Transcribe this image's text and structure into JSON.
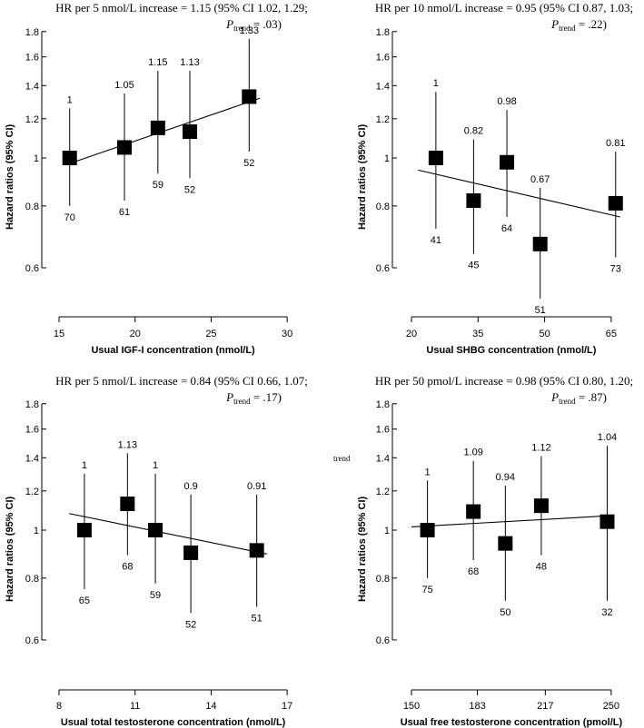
{
  "chart_data": [
    {
      "type": "scatter",
      "title": "HR per 5 nmol/L increase = 1.15 (95% CI 1.02, 1.29;",
      "p_trend": {
        "prefix": "P",
        "subscript": "trend",
        "value": " = .03)"
      },
      "xlabel": "Usual IGF-I concentration (nmol/L)",
      "ylabel": "Hazard ratios (95% CI)",
      "xlim": [
        15,
        30
      ],
      "x_ticks": [
        15,
        20,
        25,
        30
      ],
      "ylim": [
        0.5,
        1.8
      ],
      "y_ticks": [
        0.6,
        0.8,
        1,
        1.2,
        1.4,
        1.6,
        1.8
      ],
      "stray_label": "",
      "points": [
        {
          "x": 15.7,
          "hr": 1.0,
          "hr_label": "1",
          "lower": 0.8,
          "upper": 1.26,
          "n": "70"
        },
        {
          "x": 19.3,
          "hr": 1.05,
          "hr_label": "1.05",
          "lower": 0.82,
          "upper": 1.35,
          "n": "61"
        },
        {
          "x": 21.5,
          "hr": 1.15,
          "hr_label": "1.15",
          "lower": 0.93,
          "upper": 1.5,
          "n": "59"
        },
        {
          "x": 23.6,
          "hr": 1.13,
          "hr_label": "1.13",
          "lower": 0.91,
          "upper": 1.5,
          "n": "52"
        },
        {
          "x": 27.5,
          "hr": 1.33,
          "hr_label": "1.33",
          "lower": 1.03,
          "upper": 1.74,
          "n": "52"
        }
      ],
      "trend_line": {
        "x": [
          15.5,
          28.2
        ],
        "hr": [
          0.97,
          1.32
        ]
      }
    },
    {
      "type": "scatter",
      "title": "HR per 10 nmol/L increase = 0.95 (95% CI 0.87, 1.03;",
      "p_trend": {
        "prefix": "P",
        "subscript": "trend",
        "value": " = .22)"
      },
      "xlabel": "Usual SHBG concentration (nmol/L)",
      "ylabel": "Hazard ratios (95% CI)",
      "xlim": [
        20,
        65
      ],
      "x_ticks": [
        20,
        35,
        50,
        65
      ],
      "ylim": [
        0.5,
        1.8
      ],
      "y_ticks": [
        0.6,
        0.8,
        1,
        1.2,
        1.4,
        1.6,
        1.8
      ],
      "stray_label": "",
      "points": [
        {
          "x": 25.5,
          "hr": 1.0,
          "hr_label": "1",
          "lower": 0.72,
          "upper": 1.36,
          "n": "41"
        },
        {
          "x": 34.0,
          "hr": 0.82,
          "hr_label": "0.82",
          "lower": 0.64,
          "upper": 1.09,
          "n": "45"
        },
        {
          "x": 41.5,
          "hr": 0.98,
          "hr_label": "0.98",
          "lower": 0.76,
          "upper": 1.25,
          "n": "64"
        },
        {
          "x": 49.0,
          "hr": 0.67,
          "hr_label": "0.67",
          "lower": 0.52,
          "upper": 0.87,
          "n": "51"
        },
        {
          "x": 66.0,
          "hr": 0.81,
          "hr_label": "0.81",
          "lower": 0.63,
          "upper": 1.03,
          "n": "73"
        }
      ],
      "trend_line": {
        "x": [
          21.5,
          67.0
        ],
        "hr": [
          0.945,
          0.76
        ]
      }
    },
    {
      "type": "scatter",
      "title": "HR per 5 nmol/L increase = 0.84 (95% CI 0.66, 1.07;",
      "p_trend": {
        "prefix": "P",
        "subscript": "trend",
        "value": " = .17)"
      },
      "xlabel": "Usual total testosterone concentration (nmol/L)",
      "ylabel": "Hazard ratios (95% CI)",
      "xlim": [
        8,
        17
      ],
      "x_ticks": [
        8,
        11,
        14,
        17
      ],
      "ylim": [
        0.5,
        1.8
      ],
      "y_ticks": [
        0.6,
        0.8,
        1,
        1.2,
        1.4,
        1.6,
        1.8
      ],
      "stray_label": "",
      "points": [
        {
          "x": 9.0,
          "hr": 1.0,
          "hr_label": "1",
          "lower": 0.76,
          "upper": 1.3,
          "n": "65"
        },
        {
          "x": 10.7,
          "hr": 1.13,
          "hr_label": "1.13",
          "lower": 0.89,
          "upper": 1.43,
          "n": "68"
        },
        {
          "x": 11.8,
          "hr": 1.0,
          "hr_label": "1",
          "lower": 0.78,
          "upper": 1.3,
          "n": "59"
        },
        {
          "x": 13.2,
          "hr": 0.9,
          "hr_label": "0.9",
          "lower": 0.68,
          "upper": 1.18,
          "n": "52"
        },
        {
          "x": 15.8,
          "hr": 0.91,
          "hr_label": "0.91",
          "lower": 0.7,
          "upper": 1.18,
          "n": "51"
        }
      ],
      "trend_line": {
        "x": [
          8.4,
          16.2
        ],
        "hr": [
          1.08,
          0.895
        ]
      }
    },
    {
      "type": "scatter",
      "title": "HR per 50 pmol/L increase = 0.98 (95% CI 0.80, 1.20;",
      "p_trend": {
        "prefix": "P",
        "subscript": "trend",
        "value": " = .87)"
      },
      "xlabel": "Usual free testosterone concentration (pmol/L)",
      "ylabel": "Hazard ratios (95% CI)",
      "xlim": [
        150,
        250
      ],
      "x_ticks": [
        150,
        183,
        217,
        250
      ],
      "ylim": [
        0.5,
        1.8
      ],
      "y_ticks": [
        0.6,
        0.8,
        1,
        1.2,
        1.4,
        1.6,
        1.8
      ],
      "stray_label": "trend",
      "points": [
        {
          "x": 158,
          "hr": 1.0,
          "hr_label": "1",
          "lower": 0.8,
          "upper": 1.26,
          "n": "75"
        },
        {
          "x": 181,
          "hr": 1.09,
          "hr_label": "1.09",
          "lower": 0.87,
          "upper": 1.38,
          "n": "68"
        },
        {
          "x": 197,
          "hr": 0.94,
          "hr_label": "0.94",
          "lower": 0.72,
          "upper": 1.23,
          "n": "50"
        },
        {
          "x": 215,
          "hr": 1.12,
          "hr_label": "1.12",
          "lower": 0.89,
          "upper": 1.41,
          "n": "48"
        },
        {
          "x": 248,
          "hr": 1.04,
          "hr_label": "1.04",
          "lower": 0.72,
          "upper": 1.48,
          "n": "32"
        }
      ],
      "trend_line": {
        "x": [
          150,
          251
        ],
        "hr": [
          1.015,
          1.07
        ]
      }
    }
  ]
}
